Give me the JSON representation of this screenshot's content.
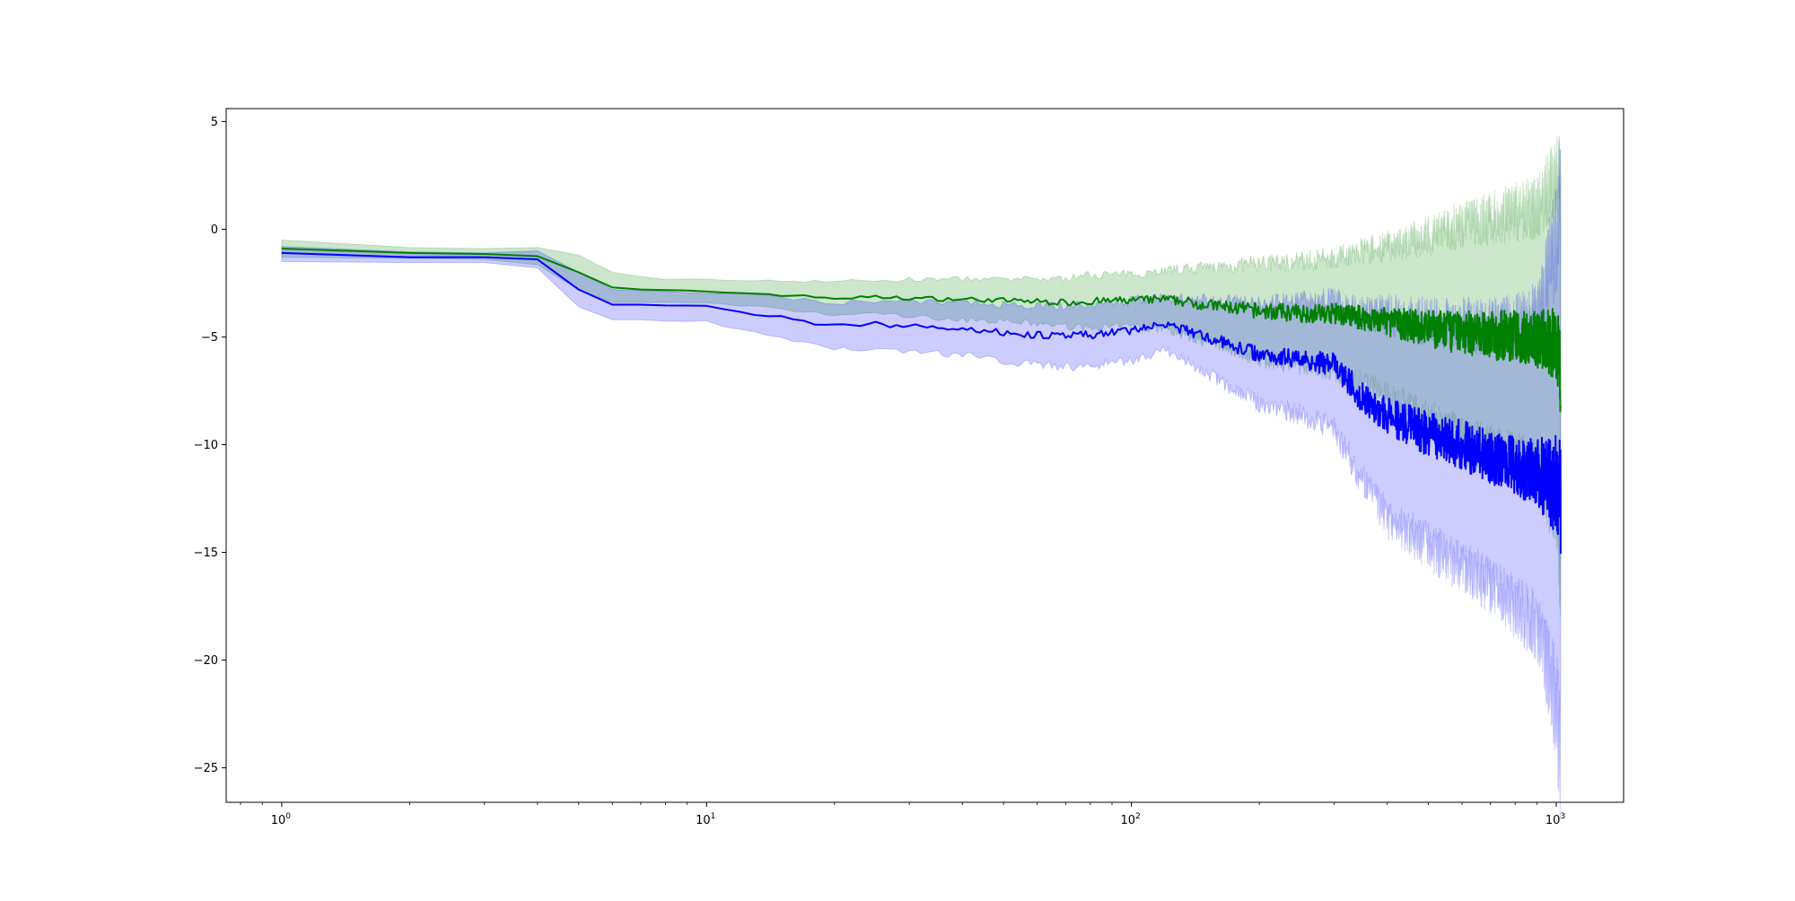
{
  "chart_data": {
    "type": "line",
    "title": "",
    "xlabel": "",
    "ylabel": "",
    "xscale": "log",
    "xlim": [
      0.74,
      1440
    ],
    "ylim": [
      -26.6,
      5.6
    ],
    "grid": false,
    "legend": "none",
    "x_ticks": [
      {
        "value": 1,
        "base": "10",
        "exp": "0"
      },
      {
        "value": 10,
        "base": "10",
        "exp": "1"
      },
      {
        "value": 100,
        "base": "10",
        "exp": "2"
      },
      {
        "value": 1000,
        "base": "10",
        "exp": "3"
      }
    ],
    "y_ticks": [
      {
        "value": 5,
        "label": "5"
      },
      {
        "value": 0,
        "label": "0"
      },
      {
        "value": -5,
        "label": "−5"
      },
      {
        "value": -10,
        "label": "−10"
      },
      {
        "value": -15,
        "label": "−15"
      },
      {
        "value": -20,
        "label": "−20"
      },
      {
        "value": -25,
        "label": "−25"
      }
    ],
    "series": [
      {
        "color": "#008000",
        "band_color": "#008000",
        "band_opacity": 0.2,
        "x": [
          1,
          2,
          3,
          4,
          5,
          6,
          7,
          8,
          10,
          12,
          15,
          20,
          25,
          30,
          40,
          50,
          60,
          70,
          80,
          100,
          120,
          150,
          200,
          250,
          300,
          400,
          500,
          600,
          700,
          800,
          900,
          1000,
          1024
        ],
        "mean": [
          -0.9,
          -1.1,
          -1.15,
          -1.25,
          -2.0,
          -2.7,
          -2.8,
          -2.85,
          -2.9,
          -2.95,
          -3.05,
          -3.2,
          -3.15,
          -3.2,
          -3.25,
          -3.3,
          -3.35,
          -3.4,
          -3.35,
          -3.3,
          -3.25,
          -3.5,
          -3.8,
          -3.9,
          -3.9,
          -4.3,
          -4.6,
          -4.8,
          -4.9,
          -5.0,
          -5.1,
          -5.3,
          -6.5
        ],
        "upper": [
          -0.5,
          -0.85,
          -0.9,
          -0.85,
          -1.2,
          -2.0,
          -2.2,
          -2.3,
          -2.35,
          -2.35,
          -2.4,
          -2.4,
          -2.4,
          -2.35,
          -2.3,
          -2.35,
          -2.3,
          -2.3,
          -2.1,
          -2.1,
          -1.9,
          -1.8,
          -1.6,
          -1.5,
          -1.3,
          -0.8,
          -0.3,
          0.2,
          0.5,
          0.8,
          1.0,
          2.5,
          3.0
        ],
        "lower": [
          -1.3,
          -1.35,
          -1.4,
          -1.65,
          -2.8,
          -3.4,
          -3.4,
          -3.4,
          -3.45,
          -3.55,
          -3.7,
          -4.0,
          -3.9,
          -4.05,
          -4.2,
          -4.25,
          -4.4,
          -4.5,
          -4.6,
          -4.5,
          -4.6,
          -5.2,
          -6.0,
          -6.3,
          -6.5,
          -7.8,
          -8.9,
          -9.8,
          -10.3,
          -10.8,
          -11.2,
          -13.1,
          -16.0
        ]
      },
      {
        "color": "#0000ff",
        "band_color": "#0000ff",
        "band_opacity": 0.2,
        "x": [
          1,
          2,
          3,
          4,
          5,
          6,
          7,
          8,
          10,
          12,
          15,
          20,
          25,
          30,
          40,
          50,
          60,
          70,
          80,
          100,
          120,
          150,
          200,
          250,
          300,
          350,
          400,
          500,
          600,
          700,
          800,
          900,
          1000,
          1024
        ],
        "mean": [
          -1.1,
          -1.3,
          -1.3,
          -1.4,
          -2.8,
          -3.5,
          -3.5,
          -3.55,
          -3.6,
          -3.85,
          -4.1,
          -4.5,
          -4.4,
          -4.5,
          -4.6,
          -4.8,
          -4.9,
          -5.0,
          -4.9,
          -4.7,
          -4.4,
          -5.0,
          -5.8,
          -6.0,
          -6.3,
          -7.8,
          -8.7,
          -9.5,
          -10.0,
          -10.6,
          -11.0,
          -11.3,
          -11.8,
          -12.3
        ],
        "upper": [
          -0.8,
          -1.05,
          -1.1,
          -1.0,
          -2.0,
          -2.8,
          -2.85,
          -2.9,
          -2.95,
          -3.0,
          -3.15,
          -3.4,
          -3.3,
          -3.35,
          -3.35,
          -3.5,
          -3.5,
          -3.6,
          -3.5,
          -3.3,
          -3.2,
          -3.3,
          -3.5,
          -3.4,
          -3.3,
          -3.9,
          -4.0,
          -4.3,
          -4.4,
          -4.6,
          -4.5,
          -4.2,
          -0.5,
          2.5
        ],
        "lower": [
          -1.5,
          -1.55,
          -1.55,
          -1.8,
          -3.6,
          -4.2,
          -4.2,
          -4.25,
          -4.3,
          -4.7,
          -5.05,
          -5.6,
          -5.5,
          -5.65,
          -5.85,
          -6.1,
          -6.3,
          -6.4,
          -6.3,
          -6.1,
          -5.6,
          -6.7,
          -8.1,
          -8.6,
          -9.3,
          -11.7,
          -13.4,
          -14.7,
          -15.6,
          -16.6,
          -17.5,
          -18.4,
          -22.0,
          -25.0
        ]
      }
    ]
  }
}
